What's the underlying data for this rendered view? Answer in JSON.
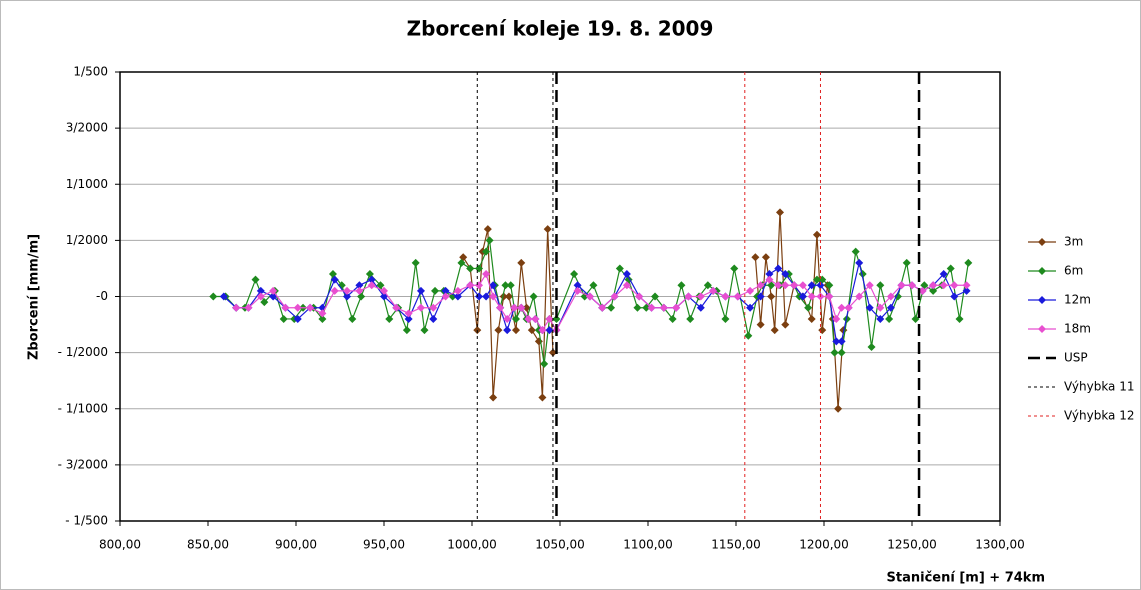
{
  "chart_data": {
    "type": "line",
    "title": "Zborcení koleje 19. 8. 2009",
    "x_label": "Staničení [m] + 74km",
    "y_label": "Zborcení [mm/m]",
    "xlim": [
      800,
      1300
    ],
    "xticks": [
      {
        "value": 800,
        "label": "800,00"
      },
      {
        "value": 850,
        "label": "850,00"
      },
      {
        "value": 900,
        "label": "900,00"
      },
      {
        "value": 950,
        "label": "950,00"
      },
      {
        "value": 1000,
        "label": "1000,00"
      },
      {
        "value": 1050,
        "label": "1050,00"
      },
      {
        "value": 1100,
        "label": "1100,00"
      },
      {
        "value": 1150,
        "label": "1150,00"
      },
      {
        "value": 1200,
        "label": "1200,00"
      },
      {
        "value": 1250,
        "label": "1250,00"
      },
      {
        "value": 1300,
        "label": "1300,00"
      }
    ],
    "ylim": [
      -0.002,
      0.002
    ],
    "yticks": [
      {
        "value": 0.002,
        "label": "1/500"
      },
      {
        "value": 0.0015,
        "label": "3/2000"
      },
      {
        "value": 0.001,
        "label": "1/1000"
      },
      {
        "value": 0.0005,
        "label": "1/2000"
      },
      {
        "value": 0,
        "label": "-0"
      },
      {
        "value": -0.0005,
        "label": "- 1/2000"
      },
      {
        "value": -0.001,
        "label": "- 1/1000"
      },
      {
        "value": -0.0015,
        "label": "- 3/2000"
      },
      {
        "value": -0.002,
        "label": "- 1/500"
      }
    ],
    "grid": true,
    "legend": "right",
    "marker": "diamond",
    "series": [
      {
        "name": "3m",
        "color": "#7b3f10",
        "x": [
          995,
          999,
          1003,
          1006,
          1009,
          1012,
          1015,
          1018,
          1021,
          1025,
          1028,
          1031,
          1034,
          1038,
          1040,
          1043,
          1046,
          null,
          1161,
          1164,
          1167,
          1170,
          1172,
          1175,
          1178,
          1183,
          1188,
          1193,
          1196,
          1199,
          1202,
          1205,
          1208,
          1211
        ],
        "values": [
          0.00035,
          0.00025,
          -0.0003,
          0.0004,
          0.0006,
          -0.0009,
          -0.0003,
          0,
          0,
          -0.0003,
          0.0003,
          -0.0001,
          -0.0003,
          -0.0004,
          -0.0009,
          0.0006,
          -0.0005,
          null,
          0.00035,
          -0.00025,
          0.00035,
          0,
          -0.0003,
          0.00075,
          -0.00025,
          0.0001,
          0,
          -0.0002,
          0.00055,
          -0.0003,
          0.0001,
          -0.0002,
          -0.001,
          -0.0003
        ]
      },
      {
        "name": "6m",
        "color": "#1e8a1e",
        "x": [
          853,
          860,
          866,
          871,
          877,
          882,
          888,
          893,
          899,
          904,
          910,
          915,
          921,
          926,
          932,
          937,
          942,
          948,
          953,
          958,
          963,
          968,
          973,
          979,
          984,
          989,
          994,
          999,
          1004,
          1008,
          1010,
          1013,
          1016,
          1019,
          1022,
          1025,
          1028,
          1031,
          1035,
          1038,
          1041,
          1044,
          1048,
          1058,
          1064,
          1069,
          1074,
          1079,
          1084,
          1089,
          1094,
          1099,
          1104,
          1109,
          1114,
          1119,
          1124,
          1129,
          1134,
          1139,
          1144,
          1149,
          1157,
          1162,
          1165,
          1170,
          1175,
          1180,
          1186,
          1191,
          1196,
          1199,
          1203,
          1206,
          1210,
          1213,
          1218,
          1222,
          1227,
          1232,
          1237,
          1242,
          1247,
          1252,
          1257,
          1262,
          1267,
          1272,
          1277,
          1282
        ],
        "values": [
          0,
          0,
          -0.0001,
          -0.0001,
          0.00015,
          -5e-05,
          5e-05,
          -0.0002,
          -0.0002,
          -0.0001,
          -0.0001,
          -0.0002,
          0.0002,
          0.0001,
          -0.0002,
          0,
          0.0002,
          0.0001,
          -0.0002,
          -0.0001,
          -0.0003,
          0.0003,
          -0.0003,
          5e-05,
          5e-05,
          0,
          0.0003,
          0.00025,
          0.00025,
          0.0004,
          0.0005,
          0.0001,
          -0.0001,
          0.0001,
          0.0001,
          -0.0002,
          -0.0001,
          -0.0002,
          0,
          -0.0003,
          -0.0006,
          -0.0002,
          -0.0002,
          0.0002,
          0,
          0.0001,
          -0.0001,
          -0.0001,
          0.00025,
          0.00015,
          -0.0001,
          -0.0001,
          0,
          -0.0001,
          -0.0002,
          0.0001,
          -0.0002,
          0,
          0.0001,
          5e-05,
          -0.0002,
          0.00025,
          -0.00035,
          0,
          0.0001,
          0.0001,
          0.0001,
          0.0002,
          0,
          -0.0001,
          0.00015,
          0.00015,
          0.0001,
          -0.0005,
          -0.0005,
          -0.0002,
          0.0004,
          0.0002,
          -0.00045,
          0.0001,
          -0.0002,
          0,
          0.0003,
          -0.0002,
          0.0001,
          5e-05,
          0.0001,
          0.00025,
          -0.0002,
          0.0003
        ]
      },
      {
        "name": "12m",
        "color": "#1a1adc",
        "x": [
          859,
          866,
          873,
          880,
          887,
          894,
          901,
          908,
          915,
          922,
          929,
          936,
          943,
          950,
          957,
          964,
          971,
          978,
          985,
          992,
          999,
          1004,
          1008,
          1012,
          1016,
          1020,
          1024,
          1028,
          1032,
          1036,
          1040,
          1044,
          1048,
          1060,
          1067,
          1074,
          1081,
          1088,
          1095,
          1102,
          1109,
          1116,
          1123,
          1130,
          1137,
          1144,
          1151,
          1158,
          1164,
          1169,
          1174,
          1178,
          1183,
          1188,
          1193,
          1198,
          1203,
          1207,
          1210,
          1214,
          1220,
          1226,
          1232,
          1238,
          1244,
          1250,
          1256,
          1262,
          1268,
          1274,
          1281
        ],
        "values": [
          0,
          -0.0001,
          -0.0001,
          5e-05,
          0,
          -0.0001,
          -0.0002,
          -0.0001,
          -0.0001,
          0.00015,
          0,
          0.0001,
          0.00015,
          0,
          -0.0001,
          -0.0002,
          5e-05,
          -0.0002,
          5e-05,
          0,
          0.0001,
          0,
          0,
          0.0001,
          -0.0001,
          -0.0003,
          -0.0001,
          -0.0001,
          -0.0002,
          -0.0002,
          -0.0003,
          -0.0003,
          -0.0003,
          0.0001,
          0,
          -0.0001,
          0,
          0.0002,
          0,
          -0.0001,
          -0.0001,
          -0.0001,
          0,
          -0.0001,
          5e-05,
          0,
          0,
          -0.0001,
          0,
          0.0002,
          0.00025,
          0.0002,
          0.0001,
          0,
          0.0001,
          0.0001,
          0,
          -0.0004,
          -0.0004,
          -0.0001,
          0.0003,
          -0.0001,
          -0.0002,
          -0.0001,
          0.0001,
          0.0001,
          5e-05,
          0.0001,
          0.0002,
          0,
          5e-05
        ]
      },
      {
        "name": "18m",
        "color": "#e84fd0",
        "x": [
          866,
          873,
          880,
          887,
          894,
          901,
          908,
          915,
          922,
          929,
          936,
          943,
          950,
          957,
          964,
          971,
          978,
          985,
          992,
          999,
          1004,
          1008,
          1012,
          1016,
          1020,
          1024,
          1028,
          1032,
          1036,
          1040,
          1044,
          1048,
          1060,
          1067,
          1074,
          1081,
          1088,
          1095,
          1102,
          1109,
          1116,
          1123,
          1130,
          1137,
          1144,
          1151,
          1158,
          1164,
          1169,
          1174,
          1178,
          1183,
          1188,
          1193,
          1198,
          1203,
          1207,
          1210,
          1214,
          1220,
          1226,
          1232,
          1238,
          1244,
          1250,
          1256,
          1262,
          1268,
          1274,
          1281
        ],
        "values": [
          -0.0001,
          -0.0001,
          0,
          5e-05,
          -0.0001,
          -0.0001,
          -0.0001,
          -0.00015,
          5e-05,
          5e-05,
          5e-05,
          0.0001,
          5e-05,
          -0.0001,
          -0.00015,
          -0.0001,
          -0.0001,
          0,
          5e-05,
          0.0001,
          0.0001,
          0.0002,
          0,
          -0.0001,
          -0.0002,
          -0.0001,
          -0.0001,
          -0.0002,
          -0.0002,
          -0.0003,
          -0.0002,
          -0.0003,
          5e-05,
          0,
          -0.0001,
          0,
          0.0001,
          0,
          -0.0001,
          -0.0001,
          -0.0001,
          0,
          0,
          5e-05,
          0,
          0,
          5e-05,
          0.0001,
          0.00015,
          0.0001,
          0.0001,
          0.0001,
          0.0001,
          0,
          0,
          0,
          -0.0002,
          -0.0001,
          -0.0001,
          0,
          0.0001,
          -0.0001,
          0,
          0.0001,
          0.0001,
          5e-05,
          0.0001,
          0.0001,
          0.0001,
          0.0001
        ]
      },
      {
        "name": "USP",
        "color": "#000000",
        "kind": "vline",
        "dash": "long",
        "x": [
          1048,
          1254
        ]
      },
      {
        "name": "Výhybka 11",
        "color": "#000000",
        "kind": "vline",
        "dash": "dot",
        "x": [
          1003,
          1046
        ]
      },
      {
        "name": "Výhybka 12",
        "color": "#e02020",
        "kind": "vline",
        "dash": "dot",
        "x": [
          1155,
          1198
        ]
      }
    ]
  }
}
